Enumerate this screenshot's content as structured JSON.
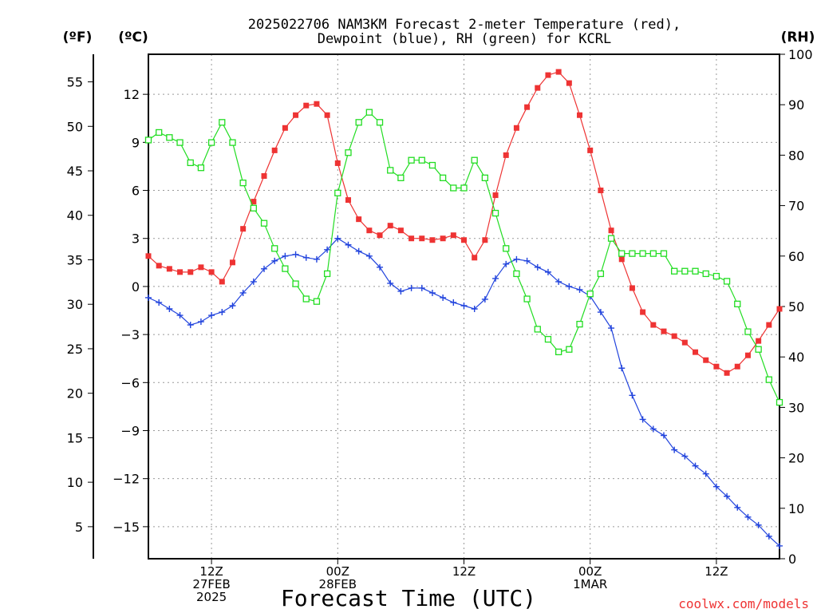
{
  "chart_data": {
    "type": "line",
    "title_line1": "2025022706 NAM3KM Forecast 2-meter Temperature (red),",
    "title_line2": "Dewpoint (blue), RH (green) for KCRL",
    "xlabel": "Forecast Time (UTC)",
    "credit": "coolwx.com/models",
    "units": {
      "left_outer": "(ºF)",
      "left_inner": "(ºC)",
      "right": "(RH)"
    },
    "x_start_hour": 0,
    "x_end_hour": 60,
    "x_ticks": [
      {
        "hour": 6,
        "lines": [
          "12Z",
          "27FEB",
          "2025"
        ]
      },
      {
        "hour": 18,
        "lines": [
          "00Z",
          "28FEB"
        ]
      },
      {
        "hour": 30,
        "lines": [
          "12Z"
        ]
      },
      {
        "hour": 42,
        "lines": [
          "00Z",
          "1MAR"
        ]
      },
      {
        "hour": 54,
        "lines": [
          "12Z"
        ]
      }
    ],
    "celsius_axis": {
      "ylim": [
        -17,
        14.5
      ],
      "ticks": [
        "12",
        "9",
        "6",
        "3",
        "0",
        "−3",
        "−6",
        "−9",
        "−12",
        "−15"
      ]
    },
    "fahrenheit_axis": {
      "ticks": [
        "55",
        "50",
        "45",
        "40",
        "35",
        "30",
        "25",
        "20",
        "15",
        "10",
        "5"
      ]
    },
    "rh_axis": {
      "ylim": [
        0,
        100
      ],
      "ticks": [
        "100",
        "90",
        "80",
        "70",
        "60",
        "50",
        "40",
        "30",
        "20",
        "10",
        "0"
      ]
    },
    "colors": {
      "temperature": "#ee3333",
      "dewpoint": "#2244dd",
      "rh": "#22dd22"
    },
    "series": [
      {
        "name": "Temperature (red)",
        "axis": "celsius",
        "marker": "filled-square",
        "values": [
          1.9,
          1.3,
          1.1,
          0.9,
          0.9,
          1.2,
          0.9,
          0.3,
          1.5,
          3.6,
          5.3,
          6.9,
          8.5,
          9.9,
          10.7,
          11.3,
          11.4,
          10.7,
          7.7,
          5.4,
          4.2,
          3.5,
          3.2,
          3.8,
          3.5,
          3.0,
          3.0,
          2.9,
          3.0,
          3.2,
          2.9,
          1.8,
          2.9,
          5.7,
          8.2,
          9.9,
          11.2,
          12.4,
          13.2,
          13.4,
          12.7,
          10.7,
          8.5,
          6.0,
          3.5,
          1.7,
          -0.1,
          -1.6,
          -2.4,
          -2.8,
          -3.1,
          -3.5,
          -4.1,
          -4.6,
          -5.0,
          -5.4,
          -5.0,
          -4.3,
          -3.4,
          -2.4,
          -1.4
        ]
      },
      {
        "name": "Dewpoint (blue)",
        "axis": "celsius",
        "marker": "plus",
        "values": [
          -0.7,
          -1.0,
          -1.4,
          -1.8,
          -2.4,
          -2.2,
          -1.8,
          -1.6,
          -1.2,
          -0.4,
          0.3,
          1.1,
          1.6,
          1.9,
          2.0,
          1.8,
          1.7,
          2.3,
          3.0,
          2.6,
          2.2,
          1.9,
          1.2,
          0.2,
          -0.3,
          -0.1,
          -0.1,
          -0.4,
          -0.7,
          -1.0,
          -1.2,
          -1.4,
          -0.8,
          0.5,
          1.4,
          1.7,
          1.6,
          1.2,
          0.9,
          0.3,
          0.0,
          -0.2,
          -0.6,
          -1.6,
          -2.6,
          -5.1,
          -6.8,
          -8.3,
          -8.9,
          -9.3,
          -10.2,
          -10.6,
          -11.2,
          -11.7,
          -12.5,
          -13.1,
          -13.8,
          -14.4,
          -14.9,
          -15.6,
          -16.2
        ]
      },
      {
        "name": "RH (green)",
        "axis": "rh",
        "marker": "open-square",
        "values": [
          83,
          84.5,
          83.5,
          82.5,
          78.5,
          77.5,
          82.5,
          86.5,
          82.5,
          74.5,
          69.5,
          66.5,
          61.5,
          57.5,
          54.5,
          51.5,
          51,
          56.5,
          72.5,
          80.5,
          86.5,
          88.5,
          86.5,
          77,
          75.5,
          79,
          79,
          78,
          75.5,
          73.5,
          73.5,
          79,
          75.5,
          68.5,
          61.5,
          56.5,
          51.5,
          45.5,
          43.5,
          41,
          41.5,
          46.5,
          52.5,
          56.5,
          63.5,
          60.5,
          60.5,
          60.5,
          60.5,
          60.5,
          57,
          57,
          57,
          56.5,
          56,
          55,
          50.5,
          45,
          41.5,
          35.5,
          31
        ]
      }
    ]
  }
}
